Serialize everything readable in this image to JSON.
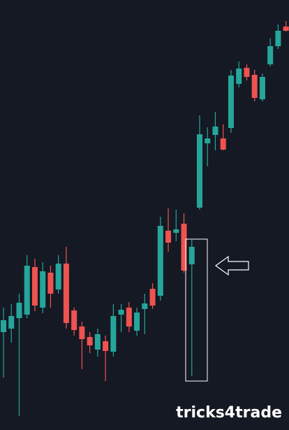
{
  "chart_data": {
    "type": "candlestick",
    "watermark": "tricks4trade",
    "up_color": "#26a69a",
    "down_color": "#ef5350",
    "background": "#151924",
    "ylim": [
      0,
      615
    ],
    "open": [
      140,
      145,
      160,
      165,
      233,
      175,
      225,
      201,
      238,
      171,
      148,
      133,
      115,
      127,
      112,
      165,
      175,
      142,
      173,
      202,
      192,
      285,
      282,
      295,
      237,
      318,
      410,
      422,
      417,
      432,
      495,
      518,
      508,
      473,
      523,
      549,
      577
    ],
    "high": [
      175,
      180,
      195,
      250,
      245,
      240,
      235,
      250,
      262,
      175,
      155,
      140,
      145,
      135,
      180,
      180,
      183,
      175,
      195,
      210,
      305,
      317,
      315,
      310,
      272,
      450,
      433,
      455,
      437,
      515,
      527,
      523,
      515,
      510,
      560,
      580,
      585
    ],
    "low": [
      75,
      125,
      20,
      160,
      170,
      167,
      175,
      195,
      145,
      135,
      87,
      110,
      105,
      70,
      105,
      140,
      140,
      135,
      137,
      173,
      185,
      255,
      270,
      225,
      77,
      315,
      377,
      400,
      400,
      425,
      490,
      500,
      470,
      470,
      520,
      545,
      570
    ],
    "close": [
      157,
      163,
      182,
      235,
      178,
      227,
      195,
      238,
      153,
      143,
      130,
      121,
      137,
      113,
      163,
      172,
      148,
      168,
      181,
      178,
      292,
      268,
      287,
      228,
      262,
      423,
      417,
      434,
      401,
      507,
      517,
      505,
      475,
      505,
      549,
      571,
      571
    ]
  }
}
